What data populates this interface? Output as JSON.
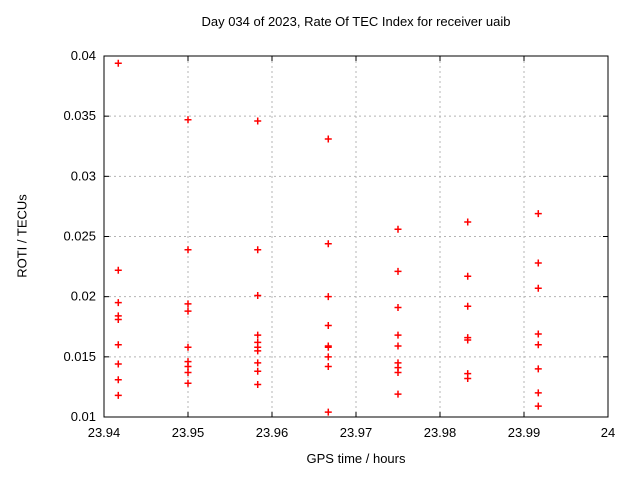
{
  "chart_data": {
    "type": "scatter",
    "title": "Day 034 of 2023, Rate Of TEC Index for receiver uaib",
    "xlabel": "GPS time / hours",
    "ylabel": "ROTI / TECUs",
    "xlim": [
      23.94,
      24
    ],
    "ylim": [
      0.01,
      0.04
    ],
    "grid": true,
    "legend": "none",
    "xticks": {
      "values": [
        23.94,
        23.95,
        23.96,
        23.97,
        23.98,
        23.99,
        24
      ],
      "labels": [
        "23.94",
        "23.95",
        "23.96",
        "23.97",
        "23.98",
        "23.99",
        "24"
      ]
    },
    "yticks": {
      "values": [
        0.01,
        0.015,
        0.02,
        0.025,
        0.03,
        0.035,
        0.04
      ],
      "labels": [
        "0.01",
        "0.015",
        "0.02",
        "0.025",
        "0.03",
        "0.035",
        "0.04"
      ]
    },
    "colors": {
      "marker": "#ff0000",
      "grid": "#b4b4b4",
      "axis": "#000000",
      "background": "#ffffff"
    },
    "marker": {
      "shape": "plus",
      "size": 7
    },
    "series": [
      {
        "name": "ROTI",
        "points": [
          [
            23.9417,
            0.0394
          ],
          [
            23.9417,
            0.0222
          ],
          [
            23.9417,
            0.0195
          ],
          [
            23.9417,
            0.0184
          ],
          [
            23.9417,
            0.0181
          ],
          [
            23.9417,
            0.016
          ],
          [
            23.9417,
            0.0144
          ],
          [
            23.9417,
            0.0131
          ],
          [
            23.9417,
            0.0118
          ],
          [
            23.95,
            0.0347
          ],
          [
            23.95,
            0.0239
          ],
          [
            23.95,
            0.0194
          ],
          [
            23.95,
            0.0188
          ],
          [
            23.95,
            0.0158
          ],
          [
            23.95,
            0.0146
          ],
          [
            23.95,
            0.0142
          ],
          [
            23.95,
            0.0137
          ],
          [
            23.95,
            0.0128
          ],
          [
            23.9583,
            0.0346
          ],
          [
            23.9583,
            0.0239
          ],
          [
            23.9583,
            0.0201
          ],
          [
            23.9583,
            0.0168
          ],
          [
            23.9583,
            0.0162
          ],
          [
            23.9583,
            0.0158
          ],
          [
            23.9583,
            0.0155
          ],
          [
            23.9583,
            0.0145
          ],
          [
            23.9583,
            0.0138
          ],
          [
            23.9583,
            0.0127
          ],
          [
            23.9667,
            0.0331
          ],
          [
            23.9667,
            0.0244
          ],
          [
            23.9667,
            0.02
          ],
          [
            23.9667,
            0.0176
          ],
          [
            23.9667,
            0.0159
          ],
          [
            23.9667,
            0.0158
          ],
          [
            23.9667,
            0.015
          ],
          [
            23.9667,
            0.0142
          ],
          [
            23.9667,
            0.0104
          ],
          [
            23.975,
            0.0256
          ],
          [
            23.975,
            0.0221
          ],
          [
            23.975,
            0.0191
          ],
          [
            23.975,
            0.0168
          ],
          [
            23.975,
            0.0159
          ],
          [
            23.975,
            0.0145
          ],
          [
            23.975,
            0.0141
          ],
          [
            23.975,
            0.0137
          ],
          [
            23.975,
            0.0119
          ],
          [
            23.9833,
            0.0262
          ],
          [
            23.9833,
            0.0217
          ],
          [
            23.9833,
            0.0192
          ],
          [
            23.9833,
            0.0166
          ],
          [
            23.9833,
            0.0164
          ],
          [
            23.9833,
            0.0136
          ],
          [
            23.9833,
            0.0132
          ],
          [
            23.9917,
            0.0269
          ],
          [
            23.9917,
            0.0228
          ],
          [
            23.9917,
            0.0207
          ],
          [
            23.9917,
            0.0169
          ],
          [
            23.9917,
            0.016
          ],
          [
            23.9917,
            0.014
          ],
          [
            23.9917,
            0.012
          ],
          [
            23.9917,
            0.0109
          ]
        ]
      }
    ]
  }
}
